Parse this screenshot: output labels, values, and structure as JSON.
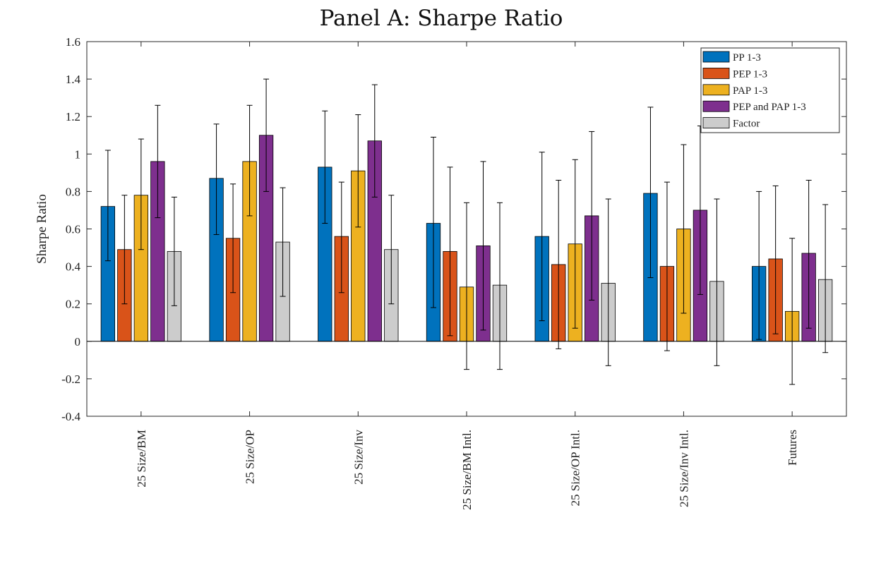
{
  "chart_data": {
    "type": "bar",
    "title": "Panel A: Sharpe Ratio",
    "xlabel": "",
    "ylabel": "Sharpe Ratio",
    "ylim": [
      -0.4,
      1.6
    ],
    "yticks": [
      -0.4,
      -0.2,
      0,
      0.2,
      0.4,
      0.6,
      0.8,
      1,
      1.2,
      1.4,
      1.6
    ],
    "ytick_labels": [
      "-0.4",
      "-0.2",
      "0",
      "0.2",
      "0.4",
      "0.6",
      "0.8",
      "1",
      "1.2",
      "1.4",
      "1.6"
    ],
    "categories": [
      "25 Size/BM",
      "25 Size/OP",
      "25 Size/Inv",
      "25 Size/BM Intl.",
      "25 Size/OP Intl.",
      "25 Size/Inv Intl.",
      "Futures"
    ],
    "legend_position": "top-right",
    "grid": false,
    "error_bars": true,
    "series": [
      {
        "name": "PP 1-3",
        "color": "#0072BD",
        "values": [
          0.72,
          0.87,
          0.93,
          0.63,
          0.56,
          0.79,
          0.4
        ],
        "lower": [
          0.43,
          0.57,
          0.63,
          0.18,
          0.11,
          0.34,
          0.01
        ],
        "upper": [
          1.02,
          1.16,
          1.23,
          1.09,
          1.01,
          1.25,
          0.8
        ]
      },
      {
        "name": "PEP 1-3",
        "color": "#D95319",
        "values": [
          0.49,
          0.55,
          0.56,
          0.48,
          0.41,
          0.4,
          0.44
        ],
        "lower": [
          0.2,
          0.26,
          0.26,
          0.03,
          -0.04,
          -0.05,
          0.04
        ],
        "upper": [
          0.78,
          0.84,
          0.85,
          0.93,
          0.86,
          0.85,
          0.83
        ]
      },
      {
        "name": "PAP 1-3",
        "color": "#EDB120",
        "values": [
          0.78,
          0.96,
          0.91,
          0.29,
          0.52,
          0.6,
          0.16
        ],
        "lower": [
          0.49,
          0.67,
          0.61,
          -0.15,
          0.07,
          0.15,
          -0.23
        ],
        "upper": [
          1.08,
          1.26,
          1.21,
          0.74,
          0.97,
          1.05,
          0.55
        ]
      },
      {
        "name": "PEP and PAP 1-3",
        "color": "#7E2F8E",
        "values": [
          0.96,
          1.1,
          1.07,
          0.51,
          0.67,
          0.7,
          0.47
        ],
        "lower": [
          0.66,
          0.8,
          0.77,
          0.06,
          0.22,
          0.25,
          0.07
        ],
        "upper": [
          1.26,
          1.4,
          1.37,
          0.96,
          1.12,
          1.15,
          0.86
        ]
      },
      {
        "name": "Factor",
        "color": "#CCCCCC",
        "values": [
          0.48,
          0.53,
          0.49,
          0.3,
          0.31,
          0.32,
          0.33
        ],
        "lower": [
          0.19,
          0.24,
          0.2,
          -0.15,
          -0.13,
          -0.13,
          -0.06
        ],
        "upper": [
          0.77,
          0.82,
          0.78,
          0.74,
          0.76,
          0.76,
          0.73
        ]
      }
    ]
  }
}
